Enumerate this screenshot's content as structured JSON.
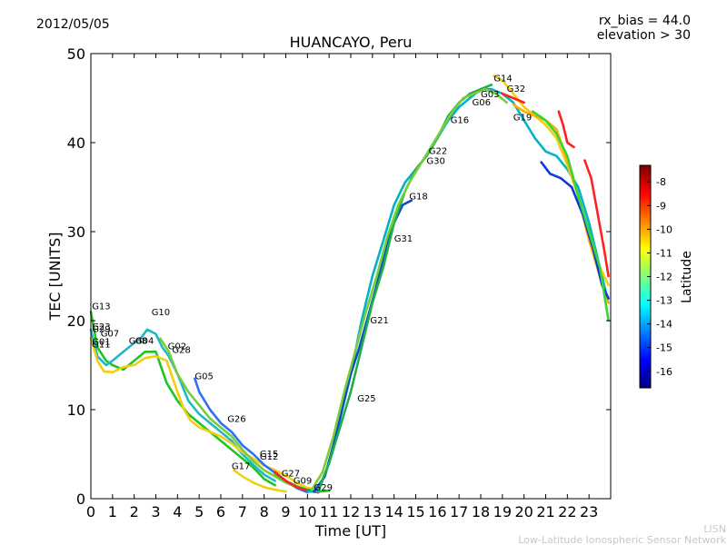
{
  "header": {
    "date": "2012/05/05",
    "rx_bias": "rx_bias = 44.0",
    "elevation": "elevation > 30"
  },
  "footer": {
    "org_short": "LISN",
    "org_long": "Low-Latitude Ionospheric Sensor Network"
  },
  "chart_data": {
    "type": "line",
    "title": "HUANCAYO, Peru",
    "xlabel": "Time [UT]",
    "ylabel": "TEC [UNITS]",
    "xlim": [
      0,
      24
    ],
    "ylim": [
      0,
      50
    ],
    "xticks": [
      0,
      1,
      2,
      3,
      4,
      5,
      6,
      7,
      8,
      9,
      10,
      11,
      12,
      13,
      14,
      15,
      16,
      17,
      18,
      19,
      20,
      21,
      22,
      23
    ],
    "yticks": [
      0,
      10,
      20,
      30,
      40,
      50
    ],
    "colorbar": {
      "label": "Latitude",
      "range": [
        -16.7,
        -7.3
      ],
      "ticks": [
        -8,
        -9,
        -10,
        -11,
        -12,
        -13,
        -14,
        -15,
        -16
      ],
      "colors": [
        "#00007f",
        "#0000ff",
        "#007fff",
        "#00ffff",
        "#7fff7f",
        "#ffff00",
        "#ff7f00",
        "#ff0000",
        "#7f0000"
      ]
    },
    "series": [
      {
        "name": "G13",
        "color": "#22c422",
        "x": [
          0,
          0.3,
          0.7,
          1.0,
          1.5,
          2.0,
          2.5,
          3.0,
          3.5,
          4.0,
          4.5,
          5.0,
          5.5,
          6.0,
          6.5,
          7.0,
          7.5,
          8.0,
          8.5
        ],
        "y": [
          21,
          17,
          15.5,
          15,
          14.5,
          15.5,
          16.5,
          16.5,
          13,
          11,
          9.5,
          8.5,
          7.5,
          6.5,
          5.5,
          4.5,
          3.5,
          2.2,
          1.5
        ]
      },
      {
        "name": "G07",
        "color": "#1fb8c8",
        "x": [
          0,
          0.3,
          0.7,
          1.0,
          1.5,
          2.0,
          2.3,
          2.6,
          3.0,
          3.3,
          3.6,
          4.0,
          4.5,
          5.0,
          5.5,
          6.0,
          6.5,
          7.0,
          7.5,
          8.0,
          8.5
        ],
        "y": [
          19,
          16,
          15,
          15.5,
          16.5,
          17.5,
          18,
          19,
          18.5,
          17,
          16,
          14,
          11,
          9.5,
          8.5,
          7.5,
          6.5,
          5.0,
          3.8,
          2.7,
          2.0
        ]
      },
      {
        "name": "G10",
        "color": "#f0d010",
        "x": [
          0,
          0.3,
          0.6,
          1.0,
          1.5,
          2.0,
          2.5,
          3.0,
          3.5,
          4.0,
          4.3,
          4.6,
          5.0,
          5.5,
          6.0,
          6.5,
          7.0,
          7.5,
          8.0,
          8.5,
          9.0,
          9.5,
          10.0,
          10.5
        ],
        "y": [
          18,
          15.5,
          14.3,
          14.2,
          14.8,
          15,
          15.8,
          16,
          15.5,
          12,
          10,
          8.8,
          8,
          7.5,
          7,
          6.2,
          5.2,
          4.5,
          3.7,
          3.2,
          2.6,
          1.8,
          1.2,
          1.0
        ]
      },
      {
        "name": "G05",
        "color": "#3070ff",
        "x": [
          4.8,
          5.0,
          5.5,
          6.0,
          6.5,
          7.0,
          7.5,
          8.0,
          8.5,
          9.0,
          9.5,
          10.0
        ],
        "y": [
          13.5,
          12,
          10,
          8.5,
          7.5,
          6,
          5,
          3.8,
          2.9,
          2.0,
          1.2,
          0.7
        ]
      },
      {
        "name": "G26",
        "color": "#7acc3a",
        "x": [
          3.2,
          3.6,
          4.0,
          4.5,
          5.0,
          5.5,
          6.0,
          6.5,
          7.0,
          7.5,
          8.0,
          8.5,
          9.0,
          9.5,
          10.0,
          10.5
        ],
        "y": [
          18,
          16.5,
          14,
          12,
          10.5,
          9,
          8,
          7,
          5.5,
          4.2,
          3.2,
          2.5,
          1.8,
          1.3,
          1.0,
          0.8
        ]
      },
      {
        "name": "G17",
        "color": "#f0d010",
        "x": [
          6.6,
          7.0,
          7.5,
          8.0,
          8.5,
          9.0
        ],
        "y": [
          3.2,
          2.5,
          1.8,
          1.3,
          1.0,
          0.8
        ]
      },
      {
        "name": "G27",
        "color": "#22c422",
        "x": [
          8.5,
          9.0,
          9.5,
          10.0,
          10.5,
          11.0
        ],
        "y": [
          2.8,
          2.0,
          1.4,
          1.0,
          0.8,
          0.9
        ]
      },
      {
        "name": "G12",
        "color": "#ff2020",
        "x": [
          8.5,
          9.0,
          9.5,
          10.0,
          10.5
        ],
        "y": [
          3.0,
          2.0,
          1.3,
          0.9,
          0.7
        ]
      },
      {
        "name": "G29",
        "color": "#00b4c8",
        "x": [
          10.0,
          10.5,
          11.0,
          11.5,
          12.0,
          12.5,
          13.0,
          13.5,
          14.0,
          14.5,
          15.0,
          15.5,
          16.0,
          16.5,
          17.0,
          17.5,
          18.0,
          18.5,
          19.0,
          19.5,
          20.0,
          20.5,
          21.0,
          21.5,
          22.0,
          22.5,
          23.0,
          23.5,
          23.9
        ],
        "y": [
          0.8,
          0.8,
          4,
          9,
          14,
          20,
          25,
          29,
          33,
          35.5,
          37,
          38.5,
          40.5,
          42.5,
          44,
          45,
          46,
          46,
          45.5,
          44.5,
          42.5,
          40.5,
          39,
          38.5,
          37,
          35,
          31,
          26,
          22
        ]
      },
      {
        "name": "G21",
        "color": "#0a4ec8",
        "x": [
          10.3,
          10.8,
          11.2,
          11.6,
          12.0,
          12.4,
          12.8,
          13.2,
          13.6,
          14.0,
          14.4,
          14.8
        ],
        "y": [
          0.8,
          2.5,
          6,
          10,
          14,
          17,
          20.5,
          24,
          28,
          31,
          33,
          33.5
        ]
      },
      {
        "name": "G25",
        "color": "#1db04a",
        "x": [
          10.5,
          11.0,
          11.5,
          12.0,
          12.5,
          13.0,
          13.5,
          14.0,
          14.5,
          15.0,
          15.5,
          16.0,
          16.5,
          17.0,
          17.5,
          18.0,
          18.5
        ],
        "y": [
          1,
          4,
          8,
          12,
          17,
          22,
          26,
          31,
          34.5,
          37,
          38.5,
          40.5,
          43,
          44.5,
          45.5,
          46,
          46.5
        ]
      },
      {
        "name": "G31",
        "color": "#7acc3a",
        "x": [
          10.2,
          10.7,
          11.2,
          11.7,
          12.2,
          12.7,
          13.2,
          13.7,
          14.2,
          14.7,
          15.2,
          15.7,
          16.2,
          16.7,
          17.2,
          17.7,
          18.2,
          18.7,
          19.2
        ],
        "y": [
          1.0,
          3,
          7,
          12,
          16.5,
          21,
          25,
          29.5,
          33,
          35.5,
          37.5,
          39.5,
          41.5,
          43.5,
          45,
          45.5,
          46,
          45.5,
          44.5
        ]
      },
      {
        "name": "G14",
        "color": "#f0d010",
        "x": [
          18.6,
          19.0,
          19.5,
          20.0,
          20.5,
          21.0,
          21.5,
          22.0,
          22.5,
          23.0,
          23.5,
          23.9
        ],
        "y": [
          47.5,
          47,
          45.5,
          44,
          43,
          42,
          40.5,
          37.5,
          34,
          30,
          26,
          24
        ]
      },
      {
        "name": "G32",
        "color": "#ff2020",
        "x": [
          19.0,
          19.5,
          20.0
        ],
        "y": [
          45.5,
          45,
          44.5
        ]
      },
      {
        "name": "G19",
        "color": "#ffb000",
        "x": [
          19.5,
          20.0,
          20.5,
          21.0,
          21.5,
          22.0,
          22.5,
          23.0,
          23.5,
          23.9
        ],
        "y": [
          44.3,
          43.5,
          43,
          42.5,
          41.5,
          38,
          34,
          29,
          25,
          22
        ]
      },
      {
        "name": "G18",
        "color": "#0a3ad8",
        "x": [
          20.8,
          21.2,
          21.7,
          22.2,
          22.7,
          23.2,
          23.6,
          23.9
        ],
        "y": [
          37.8,
          36.5,
          36,
          35,
          32,
          28,
          24,
          22.5
        ]
      },
      {
        "name": "G03",
        "color": "#3ad23a",
        "x": [
          20.4,
          21.0,
          21.5,
          22.0,
          22.5,
          23.0,
          23.5,
          23.9
        ],
        "y": [
          43.5,
          42.5,
          41,
          38.5,
          34,
          30,
          26,
          20
        ]
      },
      {
        "name": "G22",
        "color": "#ff2020",
        "x": [
          21.6,
          21.8,
          22.0,
          22.3
        ],
        "y": [
          43.5,
          42,
          40,
          39.5
        ]
      },
      {
        "name": "G30",
        "color": "#ff2020",
        "x": [
          22.8,
          23.1,
          23.4,
          23.7,
          23.9
        ],
        "y": [
          38,
          36,
          32,
          28,
          25
        ]
      }
    ],
    "annotations": [
      {
        "label": "G13",
        "x": 0.05,
        "y": 21.3
      },
      {
        "label": "G23",
        "x": 0.05,
        "y": 19.0
      },
      {
        "label": "G29",
        "x": 0.05,
        "y": 18.7
      },
      {
        "label": "G07",
        "x": 0.45,
        "y": 18.2
      },
      {
        "label": "G01",
        "x": 0.05,
        "y": 17.3
      },
      {
        "label": "G11",
        "x": 0.05,
        "y": 17.0
      },
      {
        "label": "G08",
        "x": 1.75,
        "y": 17.4
      },
      {
        "label": "G04",
        "x": 2.05,
        "y": 17.4
      },
      {
        "label": "G10",
        "x": 2.8,
        "y": 20.6
      },
      {
        "label": "G02",
        "x": 3.55,
        "y": 16.8
      },
      {
        "label": "G28",
        "x": 3.75,
        "y": 16.4
      },
      {
        "label": "G05",
        "x": 4.8,
        "y": 13.4
      },
      {
        "label": "G26",
        "x": 6.3,
        "y": 8.6
      },
      {
        "label": "G15",
        "x": 7.8,
        "y": 4.7
      },
      {
        "label": "G12",
        "x": 7.8,
        "y": 4.4
      },
      {
        "label": "G17",
        "x": 6.5,
        "y": 3.3
      },
      {
        "label": "G27",
        "x": 8.8,
        "y": 2.5
      },
      {
        "label": "G09",
        "x": 9.35,
        "y": 1.7
      },
      {
        "label": "G29",
        "x": 10.3,
        "y": 0.9
      },
      {
        "label": "G25",
        "x": 12.3,
        "y": 10.9
      },
      {
        "label": "G21",
        "x": 12.9,
        "y": 19.7
      },
      {
        "label": "G31",
        "x": 14.0,
        "y": 28.9
      },
      {
        "label": "G18",
        "x": 14.7,
        "y": 33.6
      },
      {
        "label": "G30",
        "x": 15.5,
        "y": 37.6
      },
      {
        "label": "G22",
        "x": 15.6,
        "y": 38.7
      },
      {
        "label": "G16",
        "x": 16.6,
        "y": 42.2
      },
      {
        "label": "G06",
        "x": 17.6,
        "y": 44.2
      },
      {
        "label": "G03",
        "x": 18.0,
        "y": 45.1
      },
      {
        "label": "G14",
        "x": 18.6,
        "y": 46.9
      },
      {
        "label": "G32",
        "x": 19.2,
        "y": 45.7
      },
      {
        "label": "G19",
        "x": 19.5,
        "y": 42.5
      }
    ]
  }
}
